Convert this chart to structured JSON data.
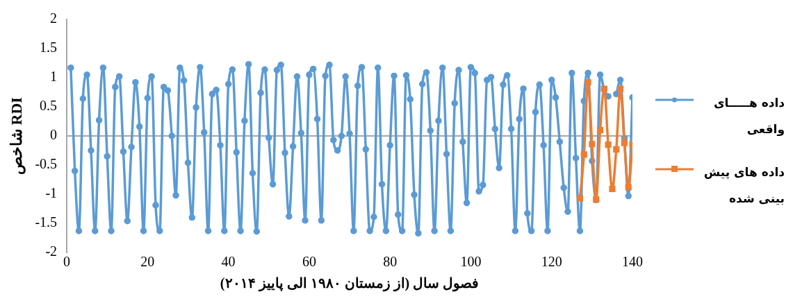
{
  "chart_data": {
    "type": "line",
    "xlabel": "فصول سال (از زمستان ۱۹۸۰ الی پاییز ۲۰۱۴)",
    "ylabel": "شاخص RDI",
    "x": [
      1,
      2,
      3,
      4,
      5,
      6,
      7,
      8,
      9,
      10,
      11,
      12,
      13,
      14,
      15,
      16,
      17,
      18,
      19,
      20,
      21,
      22,
      23,
      24,
      25,
      26,
      27,
      28,
      29,
      30,
      31,
      32,
      33,
      34,
      35,
      36,
      37,
      38,
      39,
      40,
      41,
      42,
      43,
      44,
      45,
      46,
      47,
      48,
      49,
      50,
      51,
      52,
      53,
      54,
      55,
      56,
      57,
      58,
      59,
      60,
      61,
      62,
      63,
      64,
      65,
      66,
      67,
      68,
      69,
      70,
      71,
      72,
      73,
      74,
      75,
      76,
      77,
      78,
      79,
      80,
      81,
      82,
      83,
      84,
      85,
      86,
      87,
      88,
      89,
      90,
      91,
      92,
      93,
      94,
      95,
      96,
      97,
      98,
      99,
      100,
      101,
      102,
      103,
      104,
      105,
      106,
      107,
      108,
      109,
      110,
      111,
      112,
      113,
      114,
      115,
      116,
      117,
      118,
      119,
      120,
      121,
      122,
      123,
      124,
      125,
      126,
      127,
      128,
      129,
      130,
      131,
      132,
      133,
      134,
      135,
      136,
      137,
      138,
      139,
      140
    ],
    "xlim": [
      0,
      140
    ],
    "xticks": [
      0,
      20,
      40,
      60,
      80,
      100,
      120,
      140
    ],
    "ylim": [
      -2,
      2
    ],
    "yticks": [
      -2,
      -1.5,
      -1,
      -0.5,
      0,
      0.5,
      1,
      1.5,
      2
    ],
    "grid": false,
    "legend": "right",
    "ref_lines": [
      {
        "axis": "y",
        "value": 0,
        "color": "#a6a6a6"
      }
    ],
    "series": [
      {
        "name": "داده هـــــای واقعی",
        "color": "#5b9bd5",
        "marker": "circle",
        "values": [
          1.17,
          -0.6,
          -1.63,
          0.64,
          1.05,
          -0.25,
          -1.63,
          0.27,
          1.17,
          -0.35,
          -1.63,
          0.84,
          1.02,
          -0.27,
          -1.46,
          -0.19,
          0.92,
          0.16,
          -1.63,
          0.65,
          1.02,
          -1.19,
          -1.63,
          0.84,
          0.78,
          0,
          -1.02,
          1.17,
          0.95,
          -0.46,
          -1.4,
          0.49,
          1.18,
          0.06,
          -1.63,
          0.72,
          0.79,
          -0.16,
          -1.63,
          0.89,
          1.14,
          -0.28,
          -1.63,
          0.26,
          1.23,
          -0.64,
          -1.64,
          0.74,
          1.14,
          -0.03,
          -0.83,
          1.13,
          1.22,
          -0.29,
          -1.38,
          -0.18,
          1.02,
          0.05,
          -1.45,
          1.05,
          1.15,
          0.29,
          -1.45,
          1.03,
          1.22,
          -0.07,
          -0.25,
          0,
          1.02,
          0.04,
          -1.63,
          0.86,
          1.18,
          -0.23,
          -1.63,
          -1.39,
          1.17,
          -0.83,
          -1.63,
          -0.16,
          1.03,
          -1.35,
          -1.63,
          1.04,
          0.63,
          -1.01,
          -1.67,
          0.89,
          1.09,
          0.09,
          -1.63,
          0.26,
          1.17,
          -0.31,
          -1.63,
          0.56,
          1.13,
          -0.1,
          -1.15,
          1.18,
          1.08,
          -0.95,
          -0.84,
          0.96,
          1.01,
          0.12,
          -0.55,
          0.88,
          1.04,
          0.12,
          -1.63,
          0.29,
          0.81,
          -1.33,
          -1.63,
          0.41,
          0.88,
          -0.16,
          -1.63,
          0.96,
          0.66,
          -0.1,
          -0.89,
          -1.3,
          1.08,
          -0.38,
          -1.63,
          0.6,
          1.08,
          -0.43,
          -1.1,
          1.05,
          0.8,
          0.68,
          null,
          0.72,
          0.96,
          -0.04,
          -1.03,
          0.66
        ]
      },
      {
        "name": "داده های پیش بینی شده",
        "color": "#ed7d31",
        "marker": "square",
        "x": [
          127,
          128,
          129,
          130,
          131,
          132,
          133,
          134,
          135,
          136,
          137,
          138,
          139,
          140
        ],
        "values": [
          -1.07,
          -0.32,
          0.92,
          -0.14,
          -1.09,
          0.1,
          0.81,
          -0.15,
          -0.91,
          -0.23,
          0.81,
          -0.12,
          -0.88,
          -0.15
        ]
      }
    ]
  }
}
